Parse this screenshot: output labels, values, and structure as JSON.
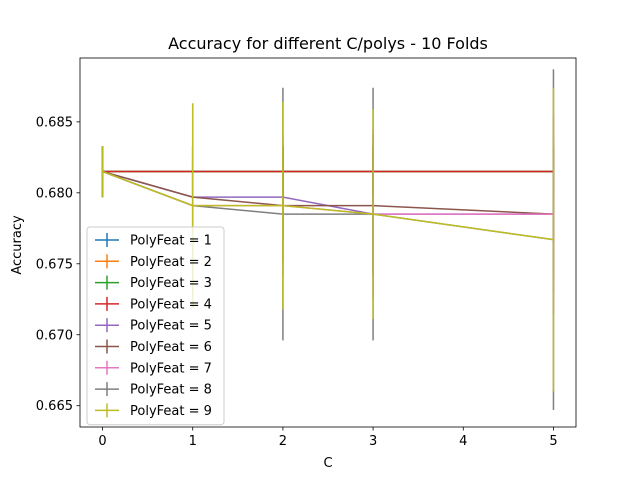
{
  "chart_data": {
    "type": "line",
    "title": "Accuracy for different C/polys - 10 Folds",
    "xlabel": "C",
    "ylabel": "Accuracy",
    "xlim": [
      -0.25,
      5.25
    ],
    "ylim": [
      0.6635,
      0.6895
    ],
    "xticks": [
      0,
      1,
      2,
      3,
      4,
      5
    ],
    "yticks": [
      0.665,
      0.67,
      0.675,
      0.68,
      0.685
    ],
    "xtick_labels": [
      "0",
      "1",
      "2",
      "3",
      "4",
      "5"
    ],
    "ytick_labels": [
      "0.665",
      "0.670",
      "0.675",
      "0.680",
      "0.685"
    ],
    "legend_position": "lower-left",
    "x": [
      0,
      1,
      2,
      3,
      5
    ],
    "series": [
      {
        "name": "PolyFeat = 1",
        "color": "#1f77b4",
        "values": [
          0.6815,
          0.6815,
          0.6815,
          0.6815,
          0.6815
        ],
        "errors": [
          0.0018,
          0.0018,
          0.0018,
          0.0018,
          0.0018
        ]
      },
      {
        "name": "PolyFeat = 2",
        "color": "#ff7f0e",
        "values": [
          0.6815,
          0.6815,
          0.6815,
          0.6815,
          0.6815
        ],
        "errors": [
          0.0018,
          0.0018,
          0.0018,
          0.0018,
          0.0018
        ]
      },
      {
        "name": "PolyFeat = 3",
        "color": "#2ca02c",
        "values": [
          0.6815,
          0.6815,
          0.6815,
          0.6815,
          0.6815
        ],
        "errors": [
          0.0018,
          0.0018,
          0.0018,
          0.0018,
          0.0018
        ]
      },
      {
        "name": "PolyFeat = 4",
        "color": "#d62728",
        "values": [
          0.6815,
          0.6815,
          0.6815,
          0.6815,
          0.6815
        ],
        "errors": [
          0.0018,
          0.0018,
          0.0018,
          0.0018,
          0.0018
        ]
      },
      {
        "name": "PolyFeat = 5",
        "color": "#9467bd",
        "values": [
          0.6815,
          0.6797,
          0.6797,
          0.6785,
          0.6785
        ],
        "errors": [
          0.0018,
          0.0025,
          0.003,
          0.004,
          0.0045
        ]
      },
      {
        "name": "PolyFeat = 6",
        "color": "#8c564b",
        "values": [
          0.6815,
          0.6797,
          0.6791,
          0.6791,
          0.6785
        ],
        "errors": [
          0.0018,
          0.003,
          0.004,
          0.005,
          0.0055
        ]
      },
      {
        "name": "PolyFeat = 7",
        "color": "#e377c2",
        "values": [
          0.6815,
          0.6791,
          0.6791,
          0.6785,
          0.6785
        ],
        "errors": [
          0.0018,
          0.0035,
          0.005,
          0.006,
          0.007
        ]
      },
      {
        "name": "PolyFeat = 8",
        "color": "#7f7f7f",
        "values": [
          0.6815,
          0.6791,
          0.6785,
          0.6785,
          0.6767
        ],
        "errors": [
          0.0018,
          0.0072,
          0.0089,
          0.0089,
          0.012
        ]
      },
      {
        "name": "PolyFeat = 9",
        "color": "#bcbd22",
        "values": [
          0.6815,
          0.6791,
          0.6791,
          0.6785,
          0.6767
        ],
        "errors": [
          0.0018,
          0.0072,
          0.0073,
          0.0074,
          0.0107
        ]
      }
    ]
  }
}
